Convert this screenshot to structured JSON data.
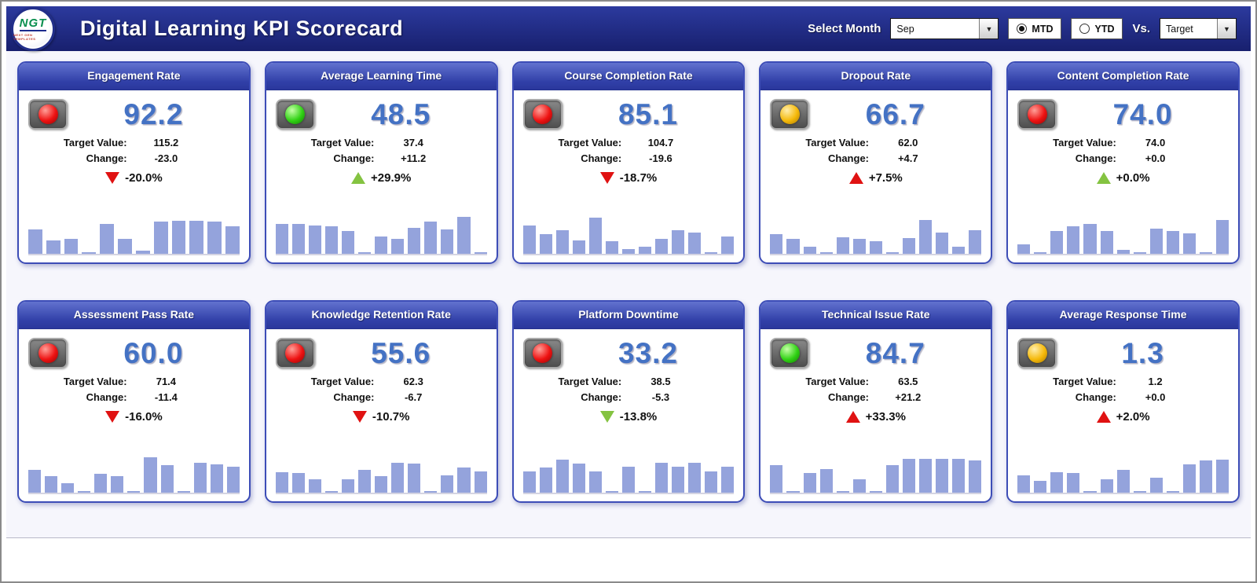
{
  "header": {
    "title": "Digital Learning KPI Scorecard",
    "logo_text": "NGT",
    "logo_subtext": "NEXT GEN TEMPLATES",
    "select_month_label": "Select Month",
    "month_value": "Sep",
    "mtd_label": "MTD",
    "ytd_label": "YTD",
    "vs_label": "Vs.",
    "vs_value": "Target",
    "dropdown_arrow": "▼"
  },
  "labels": {
    "target_value": "Target Value:",
    "change": "Change:"
  },
  "colors": {
    "header_navy": "#1E2A8C",
    "card_blue": "#3D4DB7",
    "value_blue": "#4472C4",
    "bar_fill": "#94A3DC",
    "status_red": "#EE1212",
    "status_green": "#31D215",
    "status_yellow": "#F5B90A",
    "trend_red": "#E01212",
    "trend_green": "#84C341"
  },
  "chart_data": {
    "type": "bar",
    "note": "per-card monthly trend sparklines; values are estimated percent heights, see cards[].bars"
  },
  "cards": [
    {
      "title": "Engagement Rate",
      "status": "red",
      "value": "92.2",
      "target": "115.2",
      "change": "-23.0",
      "pct": "-20.0%",
      "trend": "down",
      "trend_color": "red",
      "bars": [
        50,
        28,
        30,
        2,
        62,
        30,
        6,
        66,
        68,
        68,
        66,
        56
      ]
    },
    {
      "title": "Average Learning Time",
      "status": "green",
      "value": "48.5",
      "target": "37.4",
      "change": "+11.2",
      "pct": "+29.9%",
      "trend": "up",
      "trend_color": "green",
      "bars": [
        62,
        62,
        58,
        56,
        46,
        4,
        36,
        30,
        54,
        66,
        50,
        76,
        2
      ]
    },
    {
      "title": "Course Completion Rate",
      "status": "red",
      "value": "85.1",
      "target": "104.7",
      "change": "-19.6",
      "pct": "-18.7%",
      "trend": "down",
      "trend_color": "red",
      "bars": [
        58,
        40,
        48,
        28,
        74,
        26,
        10,
        14,
        30,
        48,
        44,
        2,
        36
      ]
    },
    {
      "title": "Dropout Rate",
      "status": "yellow",
      "value": "66.7",
      "target": "62.0",
      "change": "+4.7",
      "pct": "+7.5%",
      "trend": "up",
      "trend_color": "red",
      "bars": [
        40,
        30,
        14,
        4,
        34,
        30,
        26,
        4,
        32,
        70,
        44,
        14,
        48
      ]
    },
    {
      "title": "Content Completion Rate",
      "status": "red",
      "value": "74.0",
      "target": "74.0",
      "change": "+0.0",
      "pct": "+0.0%",
      "trend": "up",
      "trend_color": "green",
      "bars": [
        20,
        4,
        46,
        56,
        62,
        46,
        8,
        2,
        52,
        46,
        42,
        2,
        70
      ]
    },
    {
      "title": "Assessment Pass Rate",
      "status": "red",
      "value": "60.0",
      "target": "71.4",
      "change": "-11.4",
      "pct": "-16.0%",
      "trend": "down",
      "trend_color": "red",
      "bars": [
        46,
        34,
        20,
        2,
        38,
        34,
        4,
        72,
        56,
        2,
        62,
        58,
        54
      ]
    },
    {
      "title": "Knowledge Retention Rate",
      "status": "red",
      "value": "55.6",
      "target": "62.3",
      "change": "-6.7",
      "pct": "-10.7%",
      "trend": "down",
      "trend_color": "red",
      "bars": [
        42,
        40,
        28,
        4,
        28,
        46,
        34,
        62,
        60,
        2,
        36,
        52,
        44
      ]
    },
    {
      "title": "Platform Downtime",
      "status": "red",
      "value": "33.2",
      "target": "38.5",
      "change": "-5.3",
      "pct": "-13.8%",
      "trend": "down",
      "trend_color": "green",
      "bars": [
        44,
        52,
        68,
        60,
        44,
        4,
        54,
        2,
        62,
        54,
        62,
        44,
        54
      ]
    },
    {
      "title": "Technical Issue Rate",
      "status": "green",
      "value": "84.7",
      "target": "63.5",
      "change": "+21.2",
      "pct": "+33.3%",
      "trend": "up",
      "trend_color": "red",
      "bars": [
        56,
        2,
        40,
        48,
        4,
        28,
        2,
        56,
        70,
        70,
        70,
        70,
        66
      ]
    },
    {
      "title": "Average Response Time",
      "status": "yellow",
      "value": "1.3",
      "target": "1.2",
      "change": "+0.0",
      "pct": "+2.0%",
      "trend": "up",
      "trend_color": "red",
      "bars": [
        36,
        24,
        42,
        40,
        4,
        28,
        46,
        2,
        30,
        2,
        58,
        66,
        68
      ]
    }
  ]
}
